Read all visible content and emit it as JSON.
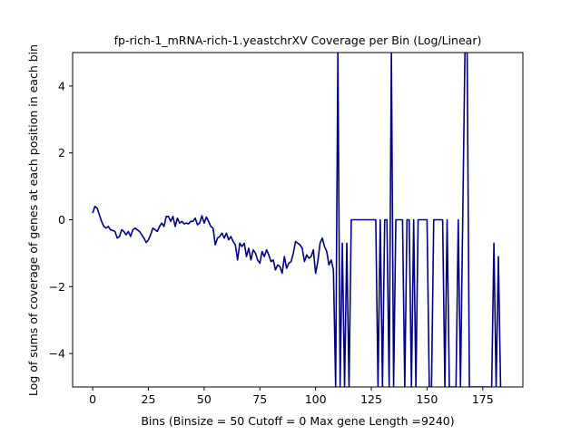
{
  "chart_data": {
    "type": "line",
    "title": "fp-rich-1_mRNA-rich-1.yeastchrXV Coverage per Bin (Log/Linear)",
    "xlabel": "Bins  (Binsize = 50 Cutoff = 0 Max gene Length =9240)",
    "ylabel": "Log of sums of coverage of genes at each position in each bin",
    "xlim": [
      -9,
      193
    ],
    "ylim": [
      -5,
      5
    ],
    "x_ticks": [
      0,
      25,
      50,
      75,
      100,
      125,
      150,
      175
    ],
    "y_ticks": [
      -4,
      -2,
      0,
      2,
      4
    ],
    "grid": false,
    "legend": "none",
    "line_color": "#000080",
    "series": [
      {
        "values": [
          0.2,
          0.4,
          0.35,
          0.15,
          -0.05,
          -0.2,
          -0.25,
          -0.2,
          -0.3,
          -0.32,
          -0.35,
          -0.55,
          -0.5,
          -0.3,
          -0.35,
          -0.45,
          -0.35,
          -0.5,
          -0.3,
          -0.25,
          -0.3,
          -0.35,
          -0.45,
          -0.55,
          -0.68,
          -0.6,
          -0.45,
          -0.25,
          -0.3,
          -0.35,
          -0.2,
          -0.1,
          -0.2,
          0.1,
          0.1,
          -0.05,
          0.1,
          -0.2,
          0.05,
          -0.1,
          -0.05,
          -0.12,
          -0.1,
          -0.12,
          -0.05,
          -0.05,
          0.05,
          -0.15,
          -0.1,
          0.12,
          -0.1,
          0.08,
          -0.05,
          -0.2,
          -0.25,
          -0.75,
          -0.55,
          -0.5,
          -0.4,
          -0.55,
          -0.4,
          -0.6,
          -0.5,
          -0.65,
          -0.75,
          -1.2,
          -0.7,
          -0.8,
          -0.7,
          -1.1,
          -0.85,
          -1.2,
          -0.9,
          -1.0,
          -1.2,
          -1.3,
          -0.95,
          -1.1,
          -0.9,
          -1.05,
          -1.25,
          -1.2,
          -1.5,
          -1.35,
          -1.4,
          -1.6,
          -1.1,
          -1.45,
          -1.3,
          -1.25,
          -1.0,
          -0.65,
          -0.7,
          -0.75,
          -0.85,
          -1.25,
          -1.05,
          -1.15,
          -1.1,
          -0.9,
          -1.6,
          -1.25,
          -0.7,
          -0.55,
          -0.8,
          -0.95,
          -1.35,
          -1.2,
          -1.5,
          -5,
          5,
          -5,
          -0.7,
          -5,
          -0.7,
          -5,
          0,
          0,
          0,
          0,
          0,
          0,
          0,
          0,
          0,
          0,
          0,
          0,
          -5,
          0,
          -5,
          0,
          0,
          -5,
          5,
          -5,
          0,
          0,
          0,
          0,
          -5,
          0,
          0,
          -5,
          0,
          -5,
          0,
          0,
          0,
          0,
          0,
          -5,
          -5,
          0,
          0,
          0,
          0,
          0,
          -5,
          0,
          -5,
          -5,
          -5,
          -5,
          0,
          -5,
          0,
          5,
          5,
          -5,
          -5,
          -5,
          -5,
          -5,
          -5,
          -5,
          -5,
          -5,
          -5,
          -5,
          -0.7,
          -5,
          -1.1,
          -5
        ]
      }
    ]
  }
}
